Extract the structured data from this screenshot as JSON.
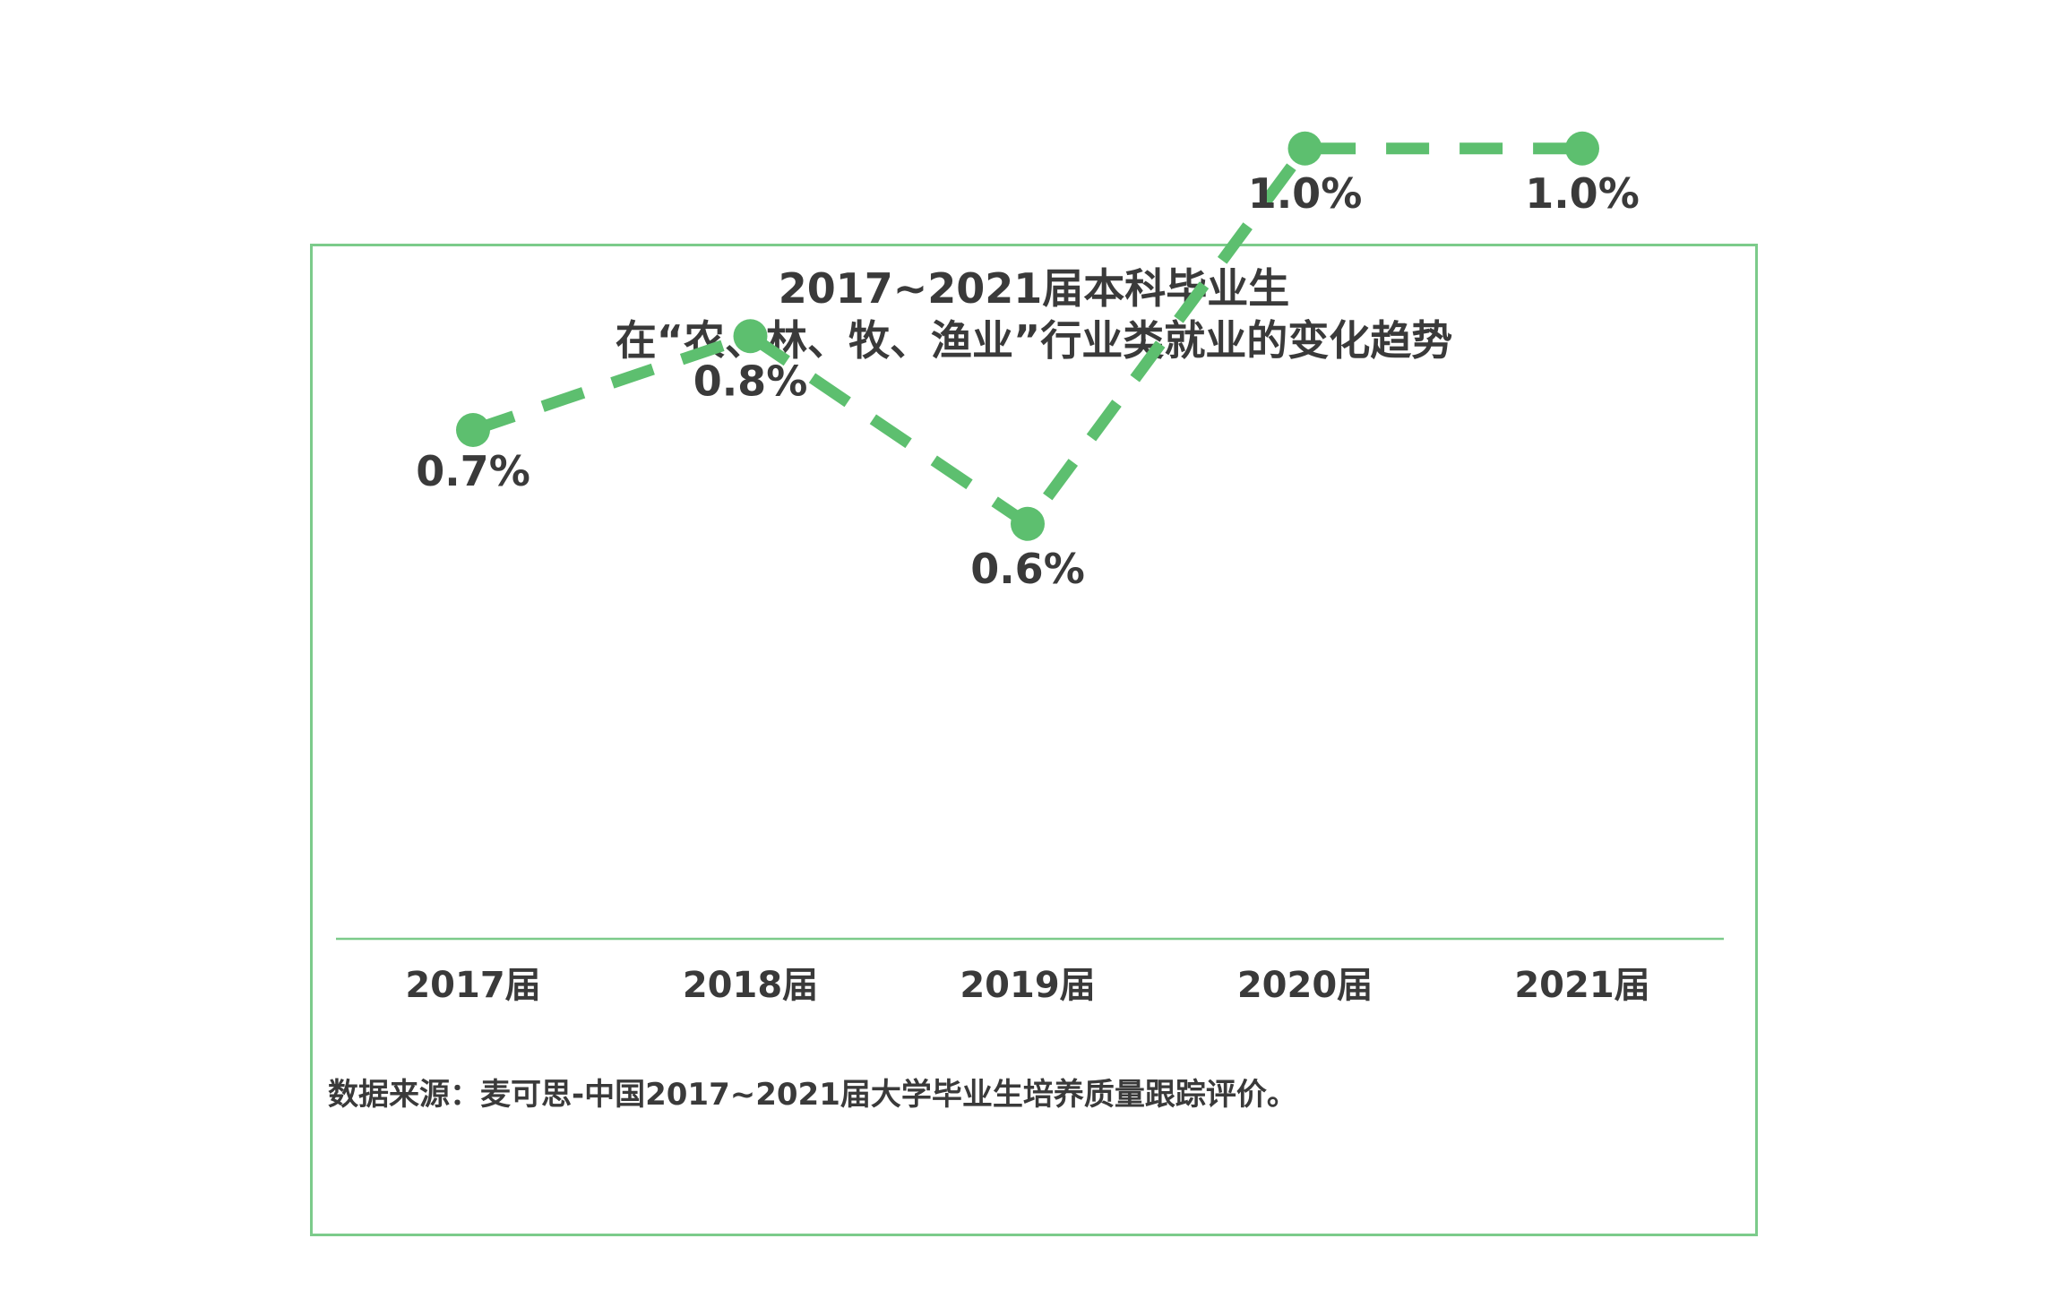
{
  "chart_data": {
    "type": "line",
    "title": "2017~2021届本科毕业生",
    "subtitle": "在“农、林、牧、渔业”行业类就业的变化趋势",
    "categories": [
      "2017届",
      "2018届",
      "2019届",
      "2020届",
      "2021届"
    ],
    "series": [
      {
        "values": [
          0.7,
          0.8,
          0.6,
          1.0,
          1.0
        ],
        "labels": [
          "0.7%",
          "0.8%",
          "0.6%",
          "1.0%",
          "1.0%"
        ],
        "color": "#5dbf6f",
        "line_style": "dashed"
      }
    ],
    "ylim": [
      0,
      1.5
    ],
    "grid": false,
    "frame_color": "#7ccb8b"
  },
  "source": "数据来源：麦可思-中国2017~2021届大学毕业生培养质量跟踪评价。"
}
